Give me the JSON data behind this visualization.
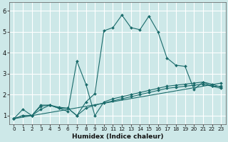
{
  "xlabel": "Humidex (Indice chaleur)",
  "xlim": [
    -0.5,
    23.5
  ],
  "ylim": [
    0.6,
    6.4
  ],
  "yticks": [
    1,
    2,
    3,
    4,
    5,
    6
  ],
  "xticks": [
    0,
    1,
    2,
    3,
    4,
    5,
    6,
    7,
    8,
    9,
    10,
    11,
    12,
    13,
    14,
    15,
    16,
    17,
    18,
    19,
    20,
    21,
    22,
    23
  ],
  "bg_color": "#cde8e8",
  "grid_color": "#ffffff",
  "line_color": "#1a6b6b",
  "lines": [
    {
      "x": [
        0,
        1,
        2,
        3,
        4,
        5,
        6,
        7,
        8,
        9,
        10,
        11,
        12,
        13,
        14,
        15,
        16,
        17,
        18,
        19,
        20,
        21,
        22,
        23
      ],
      "y": [
        0.85,
        1.3,
        1.0,
        1.5,
        1.5,
        1.35,
        1.35,
        1.0,
        1.65,
        2.05,
        5.05,
        5.2,
        5.8,
        5.2,
        5.1,
        5.75,
        5.0,
        3.75,
        3.4,
        3.35,
        2.25,
        2.6,
        2.4,
        2.4
      ],
      "style": "-",
      "marker": "D",
      "markersize": 2.0,
      "lw": 0.8
    },
    {
      "x": [
        0,
        1,
        2,
        3,
        4,
        5,
        6,
        7,
        8,
        9,
        10,
        11,
        12,
        13,
        14,
        15,
        16,
        17,
        18,
        19,
        20,
        21,
        22,
        23
      ],
      "y": [
        0.85,
        1.0,
        1.0,
        1.45,
        1.5,
        1.35,
        1.2,
        3.6,
        2.5,
        1.0,
        1.65,
        1.8,
        1.9,
        2.0,
        2.1,
        2.2,
        2.3,
        2.4,
        2.45,
        2.5,
        2.55,
        2.6,
        2.5,
        2.35
      ],
      "style": "-",
      "marker": "D",
      "markersize": 2.0,
      "lw": 0.8
    },
    {
      "x": [
        0,
        1,
        2,
        3,
        4,
        5,
        6,
        7,
        8,
        9,
        10,
        11,
        12,
        13,
        14,
        15,
        16,
        17,
        18,
        19,
        20,
        21,
        22,
        23
      ],
      "y": [
        0.85,
        1.0,
        1.0,
        1.3,
        1.5,
        1.4,
        1.35,
        1.0,
        1.35,
        1.5,
        1.6,
        1.7,
        1.8,
        1.9,
        2.0,
        2.1,
        2.2,
        2.3,
        2.35,
        2.4,
        2.45,
        2.5,
        2.4,
        2.3
      ],
      "style": "-",
      "marker": "D",
      "markersize": 2.0,
      "lw": 0.8
    },
    {
      "x": [
        0,
        23
      ],
      "y": [
        0.85,
        2.55
      ],
      "style": "-",
      "marker": "D",
      "markersize": 2.0,
      "lw": 0.8
    }
  ]
}
